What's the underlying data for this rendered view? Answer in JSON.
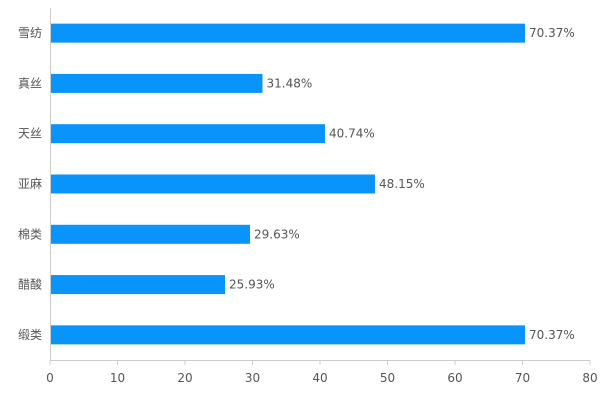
{
  "chart_data": {
    "type": "bar",
    "orientation": "horizontal",
    "categories": [
      "雪纺",
      "真丝",
      "天丝",
      "亚麻",
      "棉类",
      "醋酸",
      "缎类"
    ],
    "values": [
      70.37,
      31.48,
      40.74,
      48.15,
      29.63,
      25.93,
      70.37
    ],
    "value_labels": [
      "70.37%",
      "31.48%",
      "40.74%",
      "48.15%",
      "29.63%",
      "25.93%",
      "70.37%"
    ],
    "xlim": [
      0,
      80
    ],
    "xticks": [
      0,
      10,
      20,
      30,
      40,
      50,
      60,
      70,
      80
    ],
    "title": "",
    "xlabel": "",
    "ylabel": "",
    "grid": false,
    "bar_color": "#0994fb",
    "axis_color": "#cccccc",
    "text_color": "#555555"
  }
}
